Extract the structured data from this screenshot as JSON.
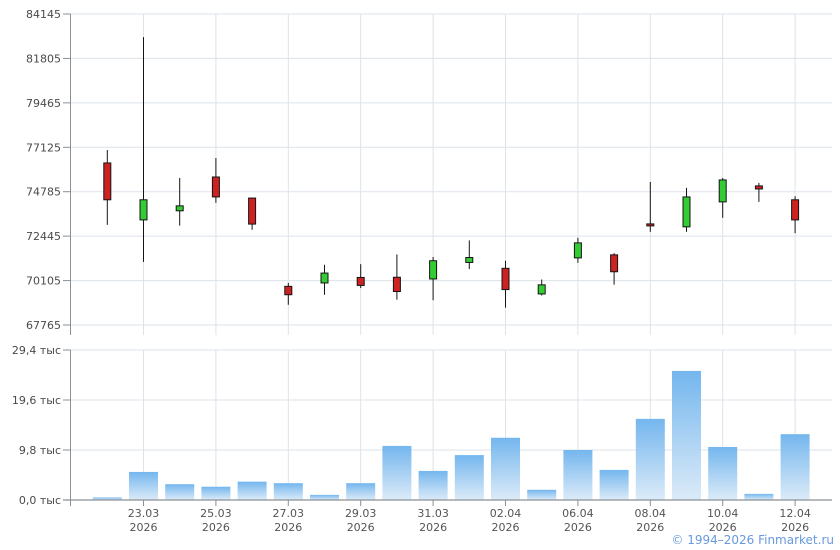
{
  "chart_data": {
    "type": "candlestick_with_volume",
    "title": "",
    "source": "Finmarket.ru",
    "price_axis": {
      "ticks": [
        84145,
        81805,
        79465,
        77125,
        74785,
        72445,
        70105,
        67765
      ],
      "labels": [
        "84145",
        "81805",
        "79465",
        "77125",
        "74785",
        "72445",
        "70105",
        "67765"
      ],
      "min": 67765,
      "max": 84145,
      "grid": true
    },
    "volume_axis": {
      "ticks_thousands": [
        29.4,
        19.6,
        9.8,
        0.0
      ],
      "labels": [
        "29,4 тыс",
        "19,6 тыс",
        "9,8 тыс",
        "0,0 тыс"
      ],
      "unit": "тыс",
      "max_thousands": 29.4,
      "grid": true
    },
    "x_labels": [
      {
        "date": "23.03",
        "year": "2026"
      },
      {
        "date": "25.03",
        "year": "2026"
      },
      {
        "date": "27.03",
        "year": "2026"
      },
      {
        "date": "29.03",
        "year": "2026"
      },
      {
        "date": "31.03",
        "year": "2026"
      },
      {
        "date": "02.04",
        "year": "2026"
      },
      {
        "date": "06.04",
        "year": "2026"
      },
      {
        "date": "08.04",
        "year": "2026"
      },
      {
        "date": "10.04",
        "year": "2026"
      },
      {
        "date": "12.04",
        "year": "2026"
      }
    ],
    "candles": [
      {
        "open": 76300,
        "high": 76980,
        "low": 73040,
        "close": 74360
      },
      {
        "open": 73300,
        "high": 82930,
        "low": 71090,
        "close": 74360
      },
      {
        "open": 73780,
        "high": 75510,
        "low": 73000,
        "close": 74040
      },
      {
        "open": 75560,
        "high": 76560,
        "low": 74200,
        "close": 74510
      },
      {
        "open": 74450,
        "high": 74480,
        "low": 72780,
        "close": 73080
      },
      {
        "open": 69800,
        "high": 69980,
        "low": 68830,
        "close": 69360
      },
      {
        "open": 69980,
        "high": 70940,
        "low": 69360,
        "close": 70500
      },
      {
        "open": 70270,
        "high": 70970,
        "low": 69710,
        "close": 69850
      },
      {
        "open": 70280,
        "high": 71480,
        "low": 69100,
        "close": 69530
      },
      {
        "open": 70190,
        "high": 71350,
        "low": 69070,
        "close": 71150
      },
      {
        "open": 71060,
        "high": 72220,
        "low": 70710,
        "close": 71320
      },
      {
        "open": 70750,
        "high": 71150,
        "low": 68680,
        "close": 69630
      },
      {
        "open": 69400,
        "high": 70160,
        "low": 69320,
        "close": 69880
      },
      {
        "open": 71300,
        "high": 72360,
        "low": 71040,
        "close": 72090
      },
      {
        "open": 71460,
        "high": 71550,
        "low": 69890,
        "close": 70570
      },
      {
        "open": 73090,
        "high": 75300,
        "low": 72670,
        "close": 73080
      },
      {
        "open": 72935,
        "high": 74985,
        "low": 72670,
        "close": 74510
      },
      {
        "open": 74250,
        "high": 75510,
        "low": 73410,
        "close": 75405
      },
      {
        "open": 75090,
        "high": 75250,
        "low": 74250,
        "close": 74930
      },
      {
        "open": 74360,
        "high": 74550,
        "low": 72600,
        "close": 73300
      }
    ],
    "volumes_thousands": [
      0.5,
      5.5,
      3.1,
      2.6,
      3.6,
      3.3,
      1.0,
      3.3,
      10.6,
      5.7,
      8.8,
      12.2,
      2.0,
      9.8,
      5.9,
      15.9,
      25.3,
      10.4,
      1.2,
      12.9
    ],
    "legend": false
  },
  "footer": {
    "copyright": "© 1994–2026 Finmarket.ru"
  },
  "colors": {
    "background": "#ffffff",
    "grid": "#dce3ea",
    "axis": "#8a9094",
    "tick_label": "#4a4a4a",
    "date_label": "#555555",
    "candle_up": "#33cc33",
    "candle_down": "#cc2222",
    "candle_border": "#141414",
    "wick": "#141414",
    "volume_top": "#74b6ee",
    "volume_bottom": "#dcebf8",
    "copyright": "#6699dd"
  }
}
